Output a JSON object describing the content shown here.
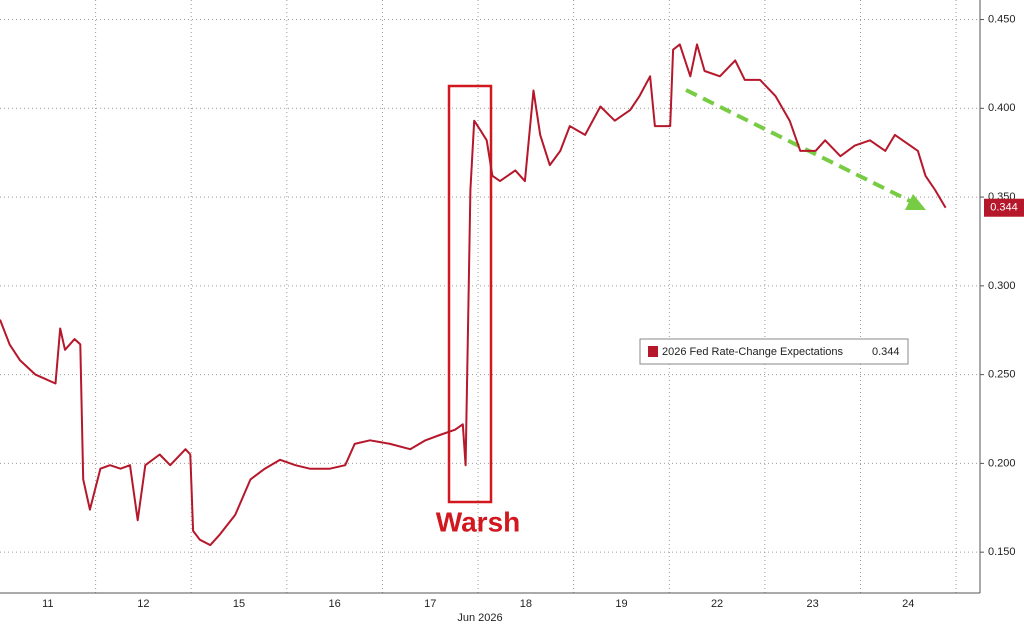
{
  "chart_data": {
    "type": "line",
    "x_label": "Jun 2026",
    "annotation": "Warsh",
    "x": [
      0,
      0.1,
      0.21,
      0.37,
      0.58,
      0.63,
      0.68,
      0.78,
      0.84,
      0.87,
      0.94,
      1.05,
      1.15,
      1.26,
      1.36,
      1.44,
      1.52,
      1.67,
      1.78,
      1.94,
      1.99,
      2.02,
      2.09,
      2.2,
      2.3,
      2.46,
      2.62,
      2.77,
      2.93,
      3.09,
      3.24,
      3.45,
      3.61,
      3.71,
      3.87,
      4.08,
      4.29,
      4.45,
      4.6,
      4.76,
      4.84,
      4.87,
      4.9,
      4.92,
      4.96,
      5.02,
      5.09,
      5.15,
      5.23,
      5.39,
      5.49,
      5.58,
      5.65,
      5.75,
      5.86,
      5.96,
      6.12,
      6.28,
      6.43,
      6.59,
      6.69,
      6.8,
      6.85,
      7.01,
      7.04,
      7.11,
      7.22,
      7.29,
      7.37,
      7.53,
      7.69,
      7.79,
      7.95,
      8.11,
      8.26,
      8.37,
      8.53,
      8.63,
      8.79,
      8.94,
      9.1,
      9.26,
      9.36,
      9.52,
      9.6,
      9.68,
      9.78,
      9.89
    ],
    "series": [
      {
        "name": "2026 Fed Rate-Change Expectations",
        "color": "#b5172b",
        "values": [
          0.281,
          0.267,
          0.258,
          0.25,
          0.245,
          0.276,
          0.264,
          0.27,
          0.267,
          0.191,
          0.174,
          0.197,
          0.199,
          0.197,
          0.199,
          0.168,
          0.199,
          0.205,
          0.199,
          0.208,
          0.205,
          0.162,
          0.157,
          0.154,
          0.16,
          0.171,
          0.191,
          0.197,
          0.202,
          0.199,
          0.197,
          0.197,
          0.199,
          0.211,
          0.213,
          0.211,
          0.208,
          0.213,
          0.216,
          0.219,
          0.222,
          0.199,
          0.292,
          0.354,
          0.393,
          0.388,
          0.382,
          0.362,
          0.359,
          0.365,
          0.359,
          0.41,
          0.385,
          0.368,
          0.376,
          0.39,
          0.385,
          0.401,
          0.393,
          0.399,
          0.407,
          0.418,
          0.39,
          0.39,
          0.433,
          0.436,
          0.418,
          0.436,
          0.421,
          0.418,
          0.427,
          0.416,
          0.416,
          0.407,
          0.393,
          0.376,
          0.376,
          0.382,
          0.373,
          0.379,
          0.382,
          0.376,
          0.385,
          0.379,
          0.376,
          0.362,
          0.354,
          0.344
        ]
      }
    ],
    "xlim": [
      0,
      10.25
    ],
    "xticks": [
      {
        "value": 0.5,
        "label": "11"
      },
      {
        "value": 1.5,
        "label": "12"
      },
      {
        "value": 2.5,
        "label": "15"
      },
      {
        "value": 3.5,
        "label": "16"
      },
      {
        "value": 4.5,
        "label": "17"
      },
      {
        "value": 5.5,
        "label": "18"
      },
      {
        "value": 6.5,
        "label": "19"
      },
      {
        "value": 7.5,
        "label": "22"
      },
      {
        "value": 8.5,
        "label": "23"
      },
      {
        "value": 9.5,
        "label": "24"
      }
    ],
    "ylim": [
      0.127,
      0.461
    ],
    "yticks": [
      {
        "value": 0.15,
        "label": "0.150"
      },
      {
        "value": 0.2,
        "label": "0.200"
      },
      {
        "value": 0.25,
        "label": "0.250"
      },
      {
        "value": 0.3,
        "label": "0.300"
      },
      {
        "value": 0.35,
        "label": "0.350"
      },
      {
        "value": 0.4,
        "label": "0.400"
      },
      {
        "value": 0.45,
        "label": "0.450"
      }
    ],
    "grid": true
  }
}
